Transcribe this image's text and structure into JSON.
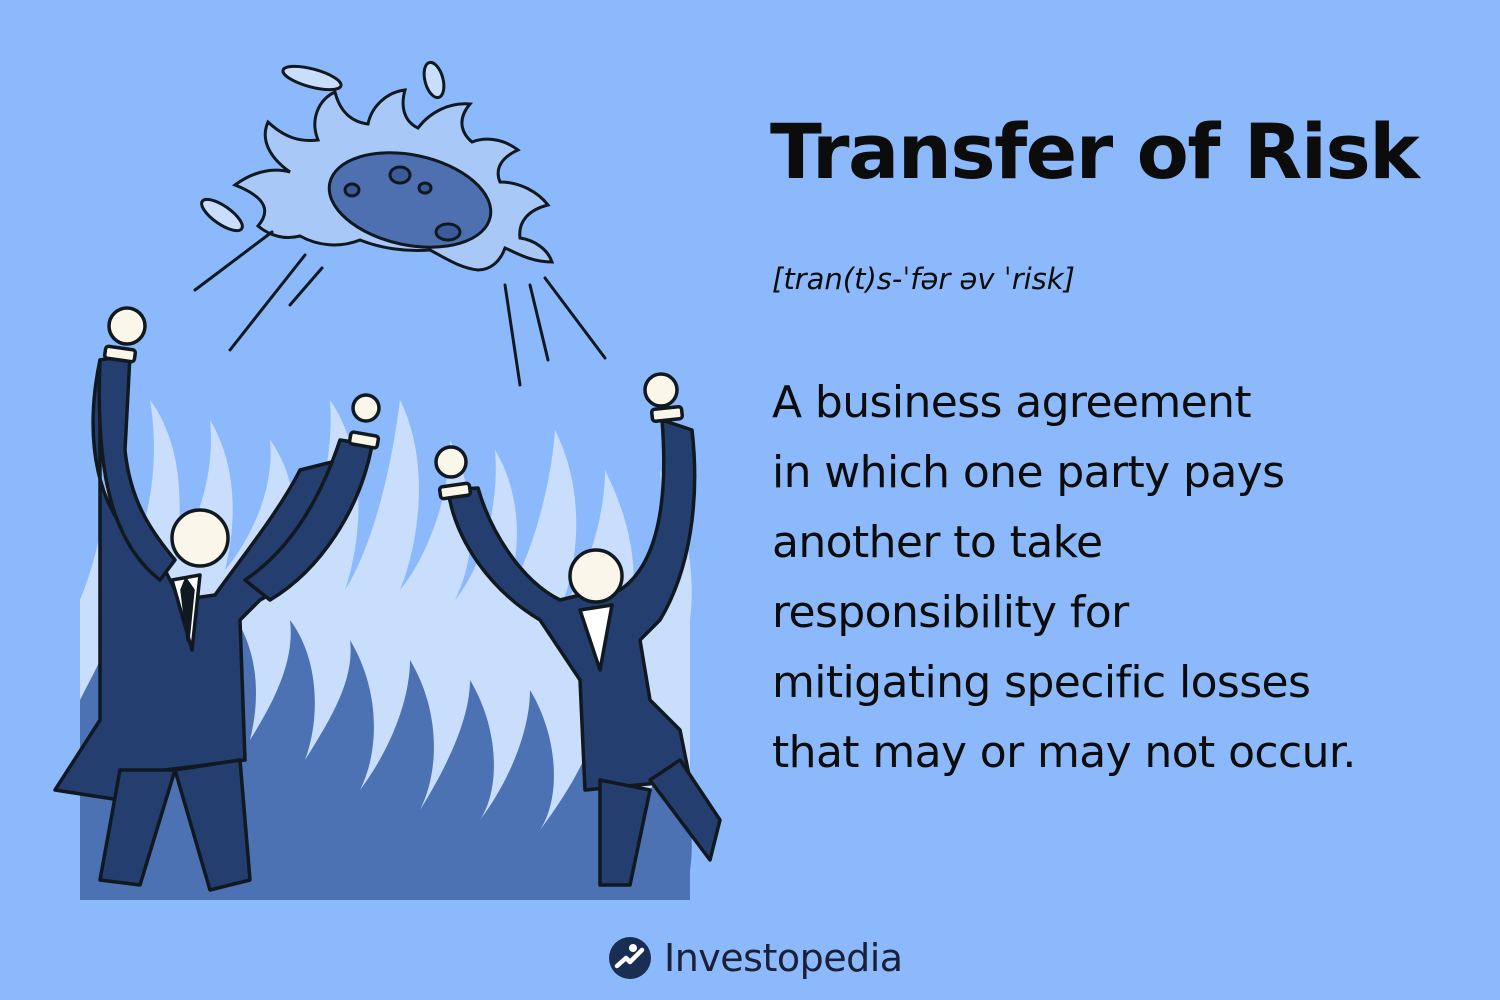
{
  "headline": {
    "title": "Transfer of Risk",
    "pronunciation": "[tran(t)s-ˈfər əv ˈrisk]"
  },
  "definition": {
    "lines": [
      "A business agreement",
      "in which one party pays",
      "another to take",
      "responsibility for",
      "mitigating specific losses",
      "that may or may not occur."
    ]
  },
  "brand": {
    "name": "Investopedia",
    "icon": "investopedia-logo-icon"
  },
  "illustration": {
    "subject": "two-businessmen-tossing-flaming-rock-over-fire",
    "colors": {
      "background": "#8cb9fb",
      "flame_light": "#c8defc",
      "flame_dark": "#4c72b4",
      "suit": "#253e70",
      "rock": "#4f70b0",
      "outline": "#101820"
    }
  }
}
